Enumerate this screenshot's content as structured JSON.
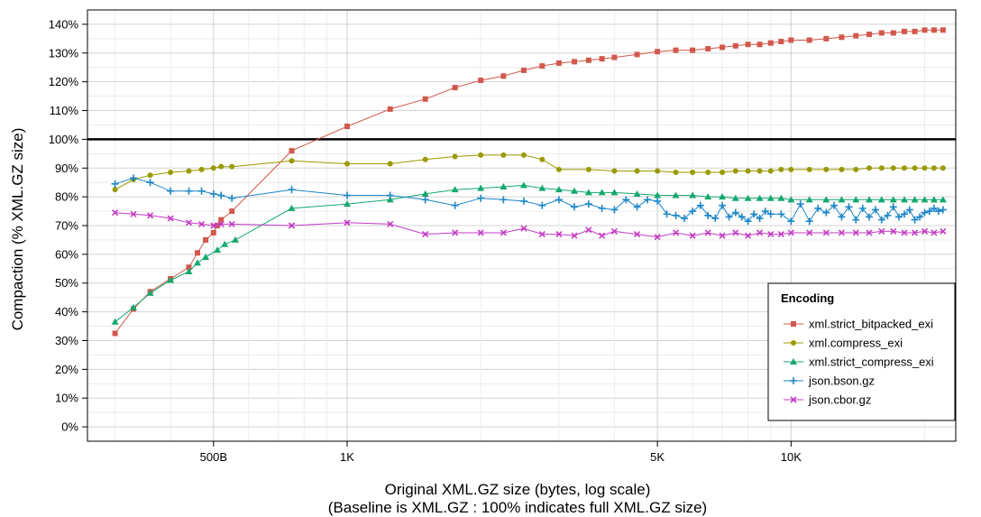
{
  "chart_data": {
    "type": "line",
    "x_scale": "log",
    "xlabel": "Original  XML.GZ  size (bytes, log scale)",
    "xlabel_note": "(Baseline is  XML.GZ : 100% indicates full  XML.GZ  size)",
    "ylabel": "Compaction (%  XML.GZ  size)",
    "xlim": [
      260,
      23500
    ],
    "ylim": [
      -5,
      145
    ],
    "x_ticks": [
      {
        "value": 500,
        "label": "500B"
      },
      {
        "value": 1000,
        "label": "1K"
      },
      {
        "value": 5000,
        "label": "5K"
      },
      {
        "value": 10000,
        "label": "10K"
      }
    ],
    "y_ticks": [
      {
        "value": 0,
        "label": "0%"
      },
      {
        "value": 10,
        "label": "10%"
      },
      {
        "value": 20,
        "label": "20%"
      },
      {
        "value": 30,
        "label": "30%"
      },
      {
        "value": 40,
        "label": "40%"
      },
      {
        "value": 50,
        "label": "50%"
      },
      {
        "value": 60,
        "label": "60%"
      },
      {
        "value": 70,
        "label": "70%"
      },
      {
        "value": 80,
        "label": "80%"
      },
      {
        "value": 90,
        "label": "90%"
      },
      {
        "value": 100,
        "label": "100%"
      },
      {
        "value": 110,
        "label": "110%"
      },
      {
        "value": 120,
        "label": "120%"
      },
      {
        "value": 130,
        "label": "130%"
      },
      {
        "value": 140,
        "label": "140%"
      }
    ],
    "baseline": 100,
    "grid": true,
    "legend": {
      "title": "Encoding",
      "position": "bottom-right"
    },
    "series": [
      {
        "name": "xml.strict_bitpacked_exi",
        "color": "#d1584c",
        "marker": "square",
        "points": [
          [
            300,
            32.5
          ],
          [
            330,
            41
          ],
          [
            360,
            47
          ],
          [
            400,
            51.5
          ],
          [
            440,
            55.5
          ],
          [
            460,
            60.5
          ],
          [
            480,
            65
          ],
          [
            500,
            67.5
          ],
          [
            510,
            70
          ],
          [
            520,
            72
          ],
          [
            550,
            75
          ],
          [
            750,
            96
          ],
          [
            1000,
            104.5
          ],
          [
            1250,
            110.5
          ],
          [
            1500,
            114
          ],
          [
            1750,
            118
          ],
          [
            2000,
            120.5
          ],
          [
            2250,
            122
          ],
          [
            2500,
            124
          ],
          [
            2750,
            125.5
          ],
          [
            3000,
            126.5
          ],
          [
            3250,
            127
          ],
          [
            3500,
            127.5
          ],
          [
            3750,
            128
          ],
          [
            4000,
            128.5
          ],
          [
            4500,
            129.5
          ],
          [
            5000,
            130.5
          ],
          [
            5500,
            131
          ],
          [
            6000,
            131
          ],
          [
            6500,
            131.5
          ],
          [
            7000,
            132
          ],
          [
            7500,
            132.5
          ],
          [
            8000,
            133
          ],
          [
            8500,
            133
          ],
          [
            9000,
            133.5
          ],
          [
            9500,
            134
          ],
          [
            10000,
            134.5
          ],
          [
            11000,
            134.5
          ],
          [
            12000,
            135
          ],
          [
            13000,
            135.5
          ],
          [
            14000,
            136
          ],
          [
            15000,
            136.5
          ],
          [
            16000,
            137
          ],
          [
            17000,
            137
          ],
          [
            18000,
            137.5
          ],
          [
            19000,
            137.5
          ],
          [
            20000,
            138
          ],
          [
            21000,
            138
          ],
          [
            22000,
            138
          ]
        ]
      },
      {
        "name": "xml.compress_exi",
        "color": "#999900",
        "marker": "circle",
        "points": [
          [
            300,
            82.5
          ],
          [
            330,
            86
          ],
          [
            360,
            87.5
          ],
          [
            400,
            88.5
          ],
          [
            440,
            89
          ],
          [
            470,
            89.5
          ],
          [
            500,
            90
          ],
          [
            520,
            90.5
          ],
          [
            550,
            90.5
          ],
          [
            750,
            92.5
          ],
          [
            1000,
            91.5
          ],
          [
            1250,
            91.5
          ],
          [
            1500,
            93
          ],
          [
            1750,
            94
          ],
          [
            2000,
            94.5
          ],
          [
            2250,
            94.5
          ],
          [
            2500,
            94.5
          ],
          [
            2750,
            93
          ],
          [
            3000,
            89.5
          ],
          [
            3500,
            89.5
          ],
          [
            4000,
            89
          ],
          [
            4500,
            89
          ],
          [
            5000,
            89
          ],
          [
            5500,
            88.5
          ],
          [
            6000,
            88.5
          ],
          [
            6500,
            88.5
          ],
          [
            7000,
            88.5
          ],
          [
            7500,
            89
          ],
          [
            8000,
            89
          ],
          [
            8500,
            89
          ],
          [
            9000,
            89
          ],
          [
            9500,
            89.5
          ],
          [
            10000,
            89.5
          ],
          [
            11000,
            89.5
          ],
          [
            12000,
            89.5
          ],
          [
            13000,
            89.5
          ],
          [
            14000,
            89.5
          ],
          [
            15000,
            90
          ],
          [
            16000,
            90
          ],
          [
            17000,
            90
          ],
          [
            18000,
            90
          ],
          [
            19000,
            90
          ],
          [
            20000,
            90
          ],
          [
            21000,
            90
          ],
          [
            22000,
            90
          ]
        ]
      },
      {
        "name": "xml.strict_compress_exi",
        "color": "#14a86d",
        "marker": "triangle",
        "points": [
          [
            300,
            36.5
          ],
          [
            330,
            41.5
          ],
          [
            360,
            46.5
          ],
          [
            400,
            51
          ],
          [
            440,
            54
          ],
          [
            460,
            57
          ],
          [
            480,
            59
          ],
          [
            510,
            61.5
          ],
          [
            530,
            63.5
          ],
          [
            560,
            65
          ],
          [
            750,
            76
          ],
          [
            1000,
            77.5
          ],
          [
            1250,
            79
          ],
          [
            1500,
            81
          ],
          [
            1750,
            82.5
          ],
          [
            2000,
            83
          ],
          [
            2250,
            83.5
          ],
          [
            2500,
            84
          ],
          [
            2750,
            83
          ],
          [
            3000,
            82.5
          ],
          [
            3250,
            82
          ],
          [
            3500,
            81.5
          ],
          [
            3750,
            81.5
          ],
          [
            4000,
            81.5
          ],
          [
            4500,
            81
          ],
          [
            5000,
            80.5
          ],
          [
            5500,
            80.5
          ],
          [
            6000,
            80.5
          ],
          [
            6500,
            80
          ],
          [
            7000,
            80
          ],
          [
            7500,
            79.5
          ],
          [
            8000,
            79.5
          ],
          [
            8500,
            79.5
          ],
          [
            9000,
            79.5
          ],
          [
            9500,
            79.5
          ],
          [
            10000,
            79
          ],
          [
            11000,
            79
          ],
          [
            12000,
            79
          ],
          [
            13000,
            79
          ],
          [
            14000,
            79
          ],
          [
            15000,
            79
          ],
          [
            16000,
            79
          ],
          [
            17000,
            79
          ],
          [
            18000,
            79
          ],
          [
            19000,
            79
          ],
          [
            20000,
            79
          ],
          [
            21000,
            79
          ],
          [
            22000,
            79
          ]
        ]
      },
      {
        "name": "json.bson.gz",
        "color": "#1c86c8",
        "marker": "plus",
        "points": [
          [
            300,
            84.5
          ],
          [
            330,
            86.5
          ],
          [
            360,
            85
          ],
          [
            400,
            82
          ],
          [
            440,
            82
          ],
          [
            470,
            82
          ],
          [
            500,
            81
          ],
          [
            520,
            80.5
          ],
          [
            550,
            79.5
          ],
          [
            750,
            82.5
          ],
          [
            1000,
            80.5
          ],
          [
            1250,
            80.5
          ],
          [
            1500,
            79
          ],
          [
            1750,
            77
          ],
          [
            2000,
            79.5
          ],
          [
            2250,
            79
          ],
          [
            2500,
            78.5
          ],
          [
            2750,
            77
          ],
          [
            3000,
            79
          ],
          [
            3250,
            76.5
          ],
          [
            3500,
            77.5
          ],
          [
            3750,
            76
          ],
          [
            4000,
            75.5
          ],
          [
            4250,
            79
          ],
          [
            4500,
            76.5
          ],
          [
            4750,
            79
          ],
          [
            5000,
            78.5
          ],
          [
            5250,
            74
          ],
          [
            5500,
            73.5
          ],
          [
            5750,
            72.5
          ],
          [
            6000,
            75
          ],
          [
            6250,
            77
          ],
          [
            6500,
            73.5
          ],
          [
            6750,
            72.5
          ],
          [
            7000,
            77
          ],
          [
            7250,
            73
          ],
          [
            7500,
            74.5
          ],
          [
            7750,
            73
          ],
          [
            8000,
            71.5
          ],
          [
            8250,
            74
          ],
          [
            8500,
            72.5
          ],
          [
            8750,
            75
          ],
          [
            9000,
            74
          ],
          [
            9500,
            74
          ],
          [
            10000,
            71.5
          ],
          [
            10500,
            77.5
          ],
          [
            11000,
            71.5
          ],
          [
            11500,
            76
          ],
          [
            12000,
            74.5
          ],
          [
            12500,
            77
          ],
          [
            13000,
            73
          ],
          [
            13500,
            76.5
          ],
          [
            14000,
            72
          ],
          [
            14500,
            76
          ],
          [
            15000,
            73
          ],
          [
            15500,
            75.5
          ],
          [
            16000,
            72
          ],
          [
            16500,
            73.5
          ],
          [
            17000,
            76.5
          ],
          [
            17500,
            73
          ],
          [
            18000,
            74
          ],
          [
            18500,
            75.5
          ],
          [
            19000,
            72
          ],
          [
            19500,
            73
          ],
          [
            20000,
            74.5
          ],
          [
            20500,
            75
          ],
          [
            21000,
            76
          ],
          [
            21500,
            75
          ],
          [
            22000,
            75.5
          ]
        ]
      },
      {
        "name": "json.cbor.gz",
        "color": "#c33cc3",
        "marker": "cross",
        "points": [
          [
            300,
            74.5
          ],
          [
            330,
            74
          ],
          [
            360,
            73.5
          ],
          [
            400,
            72.5
          ],
          [
            440,
            71
          ],
          [
            470,
            70.5
          ],
          [
            500,
            70
          ],
          [
            520,
            70.5
          ],
          [
            550,
            70.5
          ],
          [
            750,
            70
          ],
          [
            1000,
            71
          ],
          [
            1250,
            70.5
          ],
          [
            1500,
            67
          ],
          [
            1750,
            67.5
          ],
          [
            2000,
            67.5
          ],
          [
            2250,
            67.5
          ],
          [
            2500,
            69
          ],
          [
            2750,
            67
          ],
          [
            3000,
            67
          ],
          [
            3250,
            66.5
          ],
          [
            3500,
            68.5
          ],
          [
            3750,
            66.5
          ],
          [
            4000,
            68
          ],
          [
            4500,
            67
          ],
          [
            5000,
            66
          ],
          [
            5500,
            67.5
          ],
          [
            6000,
            66.5
          ],
          [
            6500,
            67.5
          ],
          [
            7000,
            66.5
          ],
          [
            7500,
            67.5
          ],
          [
            8000,
            66.5
          ],
          [
            8500,
            67.5
          ],
          [
            9000,
            67
          ],
          [
            9500,
            67
          ],
          [
            10000,
            67.5
          ],
          [
            11000,
            67.5
          ],
          [
            12000,
            67.5
          ],
          [
            13000,
            67.5
          ],
          [
            14000,
            67.5
          ],
          [
            15000,
            67.5
          ],
          [
            16000,
            68
          ],
          [
            17000,
            68
          ],
          [
            18000,
            67.5
          ],
          [
            19000,
            67.5
          ],
          [
            20000,
            68
          ],
          [
            21000,
            67.5
          ],
          [
            22000,
            68
          ]
        ]
      }
    ]
  }
}
